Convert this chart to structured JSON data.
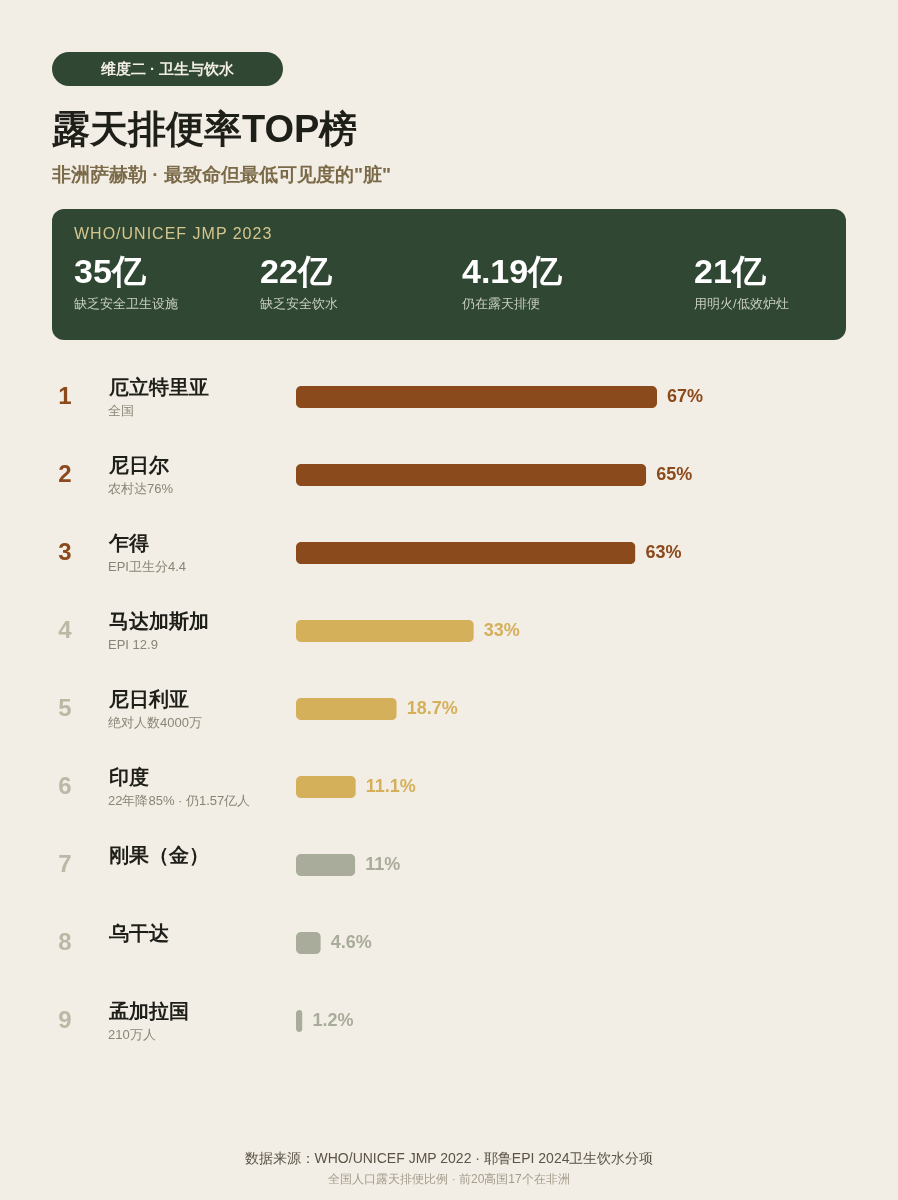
{
  "chart_data": {
    "type": "bar",
    "orientation": "horizontal",
    "title": "露天排便率TOP榜",
    "subtitle": "非洲萨赫勒 · 最致命但最低可见度的\"脏\"",
    "categories": [
      "厄立特里亚",
      "尼日尔",
      "乍得",
      "马达加斯加",
      "尼日利亚",
      "印度",
      "刚果（金）",
      "乌干达",
      "孟加拉国"
    ],
    "values": [
      67,
      65,
      63,
      33,
      18.7,
      11.1,
      11,
      4.6,
      1.2
    ],
    "value_labels": [
      "67%",
      "65%",
      "63%",
      "33%",
      "18.7%",
      "11.1%",
      "11%",
      "4.6%",
      "1.2%"
    ],
    "colors": [
      "#8b4a1c",
      "#8b4a1c",
      "#8b4a1c",
      "#d4b05a",
      "#d4b05a",
      "#d4b05a",
      "#a9ab9b",
      "#a9ab9b",
      "#a9ab9b"
    ],
    "annotations": [
      "维度二 · 卫生与饮水",
      "WHO/UNICEF JMP 2023",
      "35亿",
      "缺乏安全卫生设施",
      "22亿",
      "缺乏安全饮水",
      "4.19亿",
      "仍在露天排便",
      "21亿",
      "用明火/低效炉灶",
      "数据来源：WHO/UNICEF JMP 2022 · 耶鲁EPI 2024卫生饮水分项",
      "全国人口露天排便比例 · 前20高国17个在非洲",
      "1",
      "2",
      "3",
      "4",
      "5",
      "6",
      "7",
      "8",
      "9",
      "全国",
      "农村达76%",
      "EPI卫生分4.4",
      "EPI 12.9",
      "绝对人数4000万",
      "22年降85% · 仍1.57亿人",
      null,
      null,
      "210万人"
    ]
  }
}
